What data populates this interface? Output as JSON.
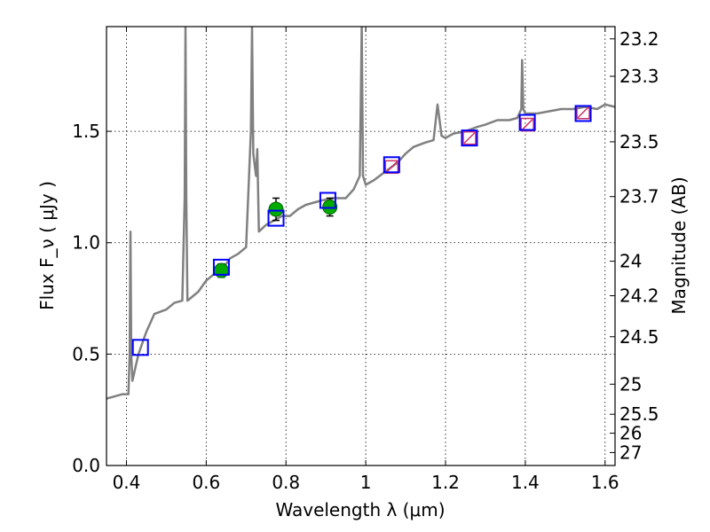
{
  "chart_data": {
    "type": "line",
    "xlabel": "Wavelength  λ (μm)",
    "ylabel": "Flux  F_ν  ( μJy )",
    "y2label": "Magnitude (AB)",
    "xlim": [
      0.35,
      1.625
    ],
    "ylim": [
      0.0,
      1.97
    ],
    "grid": true,
    "xticks": [
      0.4,
      0.6,
      0.8,
      1.0,
      1.2,
      1.4,
      1.6
    ],
    "xtick_labels": [
      "0.4",
      "0.6",
      "0.8",
      "1",
      "1.2",
      "1.4",
      "1.6"
    ],
    "yticks": [
      0.0,
      0.5,
      1.0,
      1.5
    ],
    "ytick_labels": [
      "0.0",
      "0.5",
      "1.0",
      "1.5"
    ],
    "y2ticks": [
      {
        "label": "23.2",
        "flux": 1.915
      },
      {
        "label": "23.3",
        "flux": 1.747
      },
      {
        "label": "23.5",
        "flux": 1.453
      },
      {
        "label": "23.7",
        "flux": 1.207
      },
      {
        "label": "24",
        "flux": 0.917
      },
      {
        "label": "24.2",
        "flux": 0.762
      },
      {
        "label": "24.5",
        "flux": 0.578
      },
      {
        "label": "25",
        "flux": 0.365
      },
      {
        "label": "25.5",
        "flux": 0.23
      },
      {
        "label": "26",
        "flux": 0.145
      },
      {
        "label": "27",
        "flux": 0.058
      }
    ],
    "series": [
      {
        "kind": "spectrum",
        "color": "#808080",
        "x": [
          0.35,
          0.37,
          0.39,
          0.405,
          0.408,
          0.41,
          0.412,
          0.415,
          0.43,
          0.45,
          0.47,
          0.5,
          0.52,
          0.54,
          0.546,
          0.548,
          0.55,
          0.553,
          0.56,
          0.58,
          0.6,
          0.62,
          0.64,
          0.66,
          0.68,
          0.7,
          0.712,
          0.715,
          0.718,
          0.725,
          0.728,
          0.732,
          0.75,
          0.77,
          0.79,
          0.81,
          0.83,
          0.85,
          0.87,
          0.89,
          0.92,
          0.95,
          0.97,
          0.985,
          0.99,
          0.993,
          1.0,
          1.02,
          1.05,
          1.08,
          1.1,
          1.12,
          1.15,
          1.17,
          1.18,
          1.185,
          1.19,
          1.2,
          1.22,
          1.25,
          1.28,
          1.3,
          1.33,
          1.36,
          1.38,
          1.39,
          1.392,
          1.395,
          1.4,
          1.43,
          1.46,
          1.49,
          1.52,
          1.55,
          1.58,
          1.6,
          1.625
        ],
        "y": [
          0.3,
          0.31,
          0.32,
          0.32,
          0.5,
          1.05,
          0.5,
          0.38,
          0.5,
          0.6,
          0.68,
          0.7,
          0.73,
          0.74,
          1.2,
          1.97,
          1.2,
          0.74,
          0.75,
          0.78,
          0.83,
          0.86,
          0.88,
          0.93,
          0.95,
          0.98,
          1.5,
          1.97,
          1.4,
          1.3,
          1.42,
          1.05,
          1.08,
          1.1,
          1.12,
          1.12,
          1.15,
          1.17,
          1.18,
          1.19,
          1.2,
          1.2,
          1.24,
          1.3,
          1.97,
          1.3,
          1.26,
          1.28,
          1.32,
          1.36,
          1.4,
          1.43,
          1.45,
          1.46,
          1.62,
          1.55,
          1.48,
          1.47,
          1.49,
          1.5,
          1.52,
          1.53,
          1.55,
          1.55,
          1.56,
          1.6,
          1.82,
          1.6,
          1.58,
          1.58,
          1.59,
          1.6,
          1.6,
          1.61,
          1.6,
          1.62,
          1.61
        ]
      },
      {
        "kind": "model-photometry",
        "color": "#0000ff",
        "marker": "open-square",
        "x": [
          0.435,
          0.638,
          0.775,
          0.905,
          1.065,
          1.26,
          1.405,
          1.545
        ],
        "y": [
          0.53,
          0.89,
          1.11,
          1.19,
          1.35,
          1.47,
          1.54,
          1.58
        ]
      },
      {
        "kind": "observed-optical",
        "color": "#00aa00",
        "marker": "filled-circle",
        "x": [
          0.638,
          0.775,
          0.91
        ],
        "y": [
          0.875,
          1.15,
          1.16
        ],
        "yerr": [
          0.03,
          0.05,
          0.04
        ]
      },
      {
        "kind": "observed-nir",
        "color": "#cc3366",
        "marker": "open-square",
        "x": [
          1.065,
          1.26,
          1.405,
          1.545
        ],
        "y": [
          1.34,
          1.47,
          1.53,
          1.585
        ]
      }
    ]
  }
}
